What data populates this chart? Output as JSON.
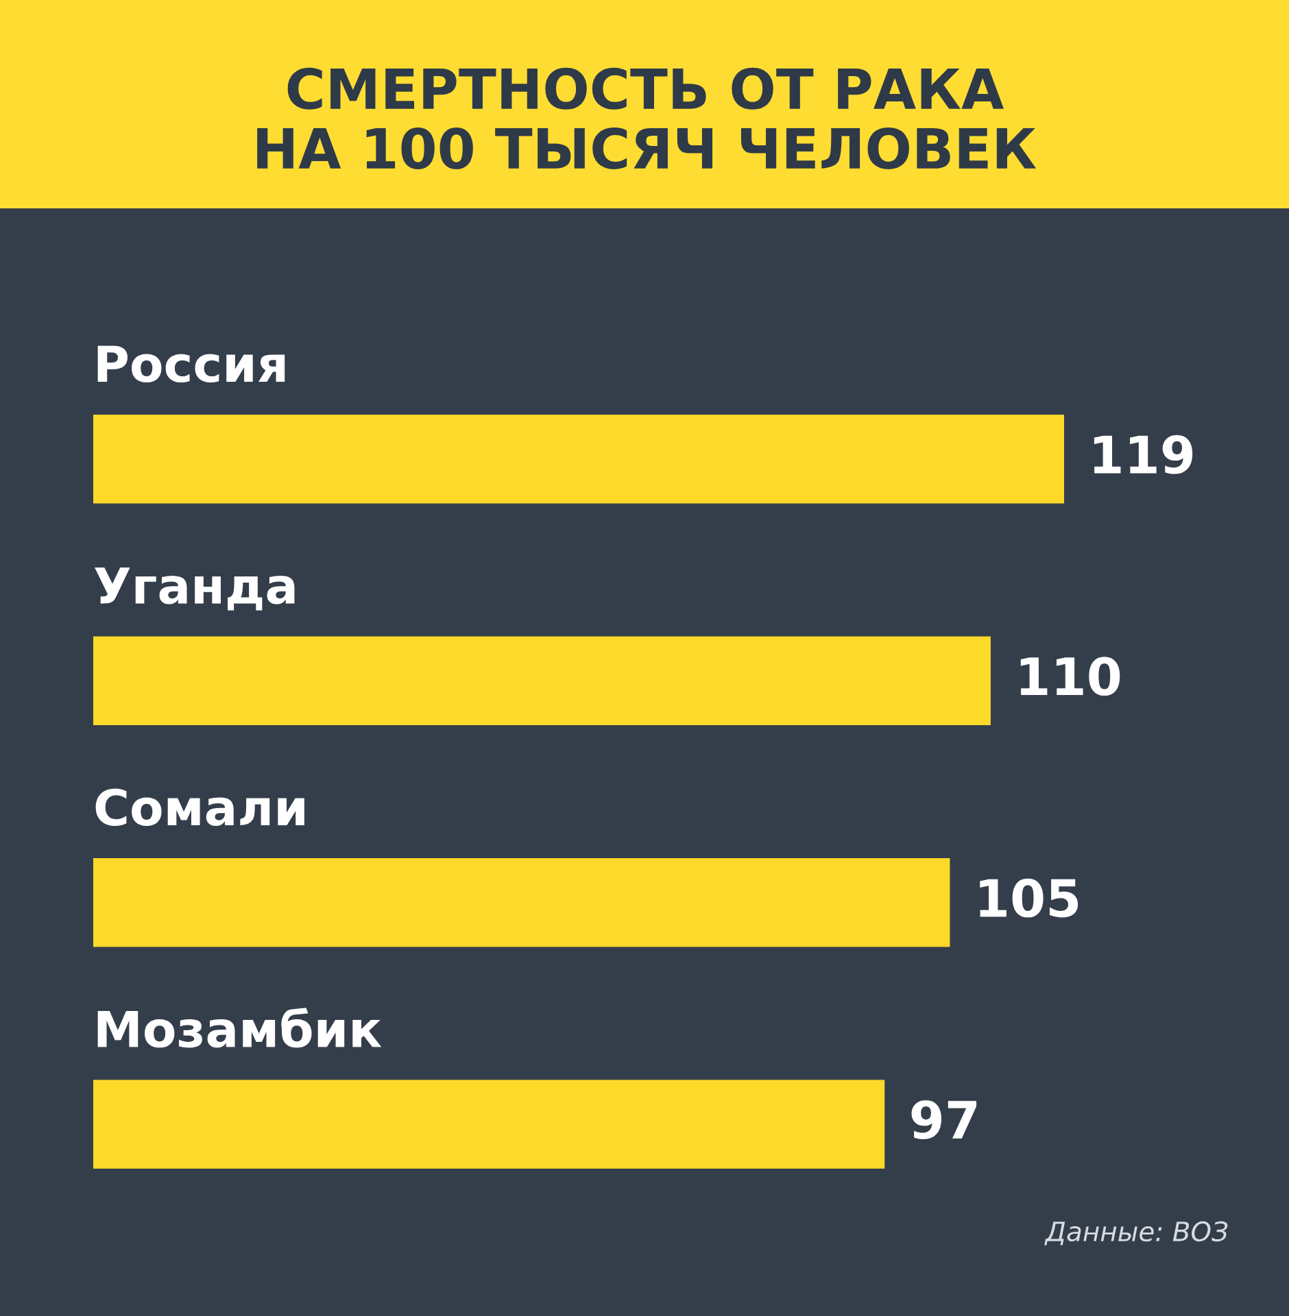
{
  "chart_data": {
    "type": "bar",
    "orientation": "horizontal",
    "title": "СМЕРТНОСТЬ ОТ РАКА\nНА 100 ТЫСЯЧ ЧЕЛОВЕК",
    "categories": [
      "Россия",
      "Уганда",
      "Сомали",
      "Мозамбик"
    ],
    "values": [
      119,
      110,
      105,
      97
    ],
    "color": "#fdd92a",
    "data_labels": true,
    "tick_labels": "y",
    "legend": false,
    "annotations": [
      "Данные: ВОЗ"
    ]
  }
}
